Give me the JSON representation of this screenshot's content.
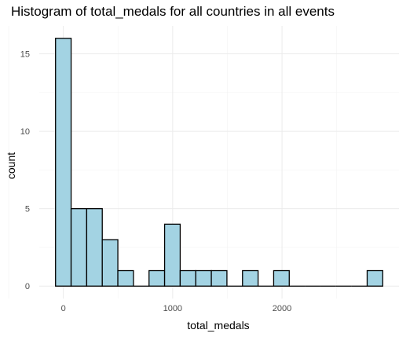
{
  "chart_data": {
    "type": "bar",
    "title": "Histogram of total_medals for all countries in all events",
    "xlabel": "total_medals",
    "ylabel": "count",
    "bin_width": 142.5,
    "bins": [
      {
        "x0": -71.25,
        "x1": 71.25,
        "count": 16
      },
      {
        "x0": 71.25,
        "x1": 213.75,
        "count": 5
      },
      {
        "x0": 213.75,
        "x1": 356.25,
        "count": 5
      },
      {
        "x0": 356.25,
        "x1": 498.75,
        "count": 3
      },
      {
        "x0": 498.75,
        "x1": 641.25,
        "count": 1
      },
      {
        "x0": 641.25,
        "x1": 783.75,
        "count": 0
      },
      {
        "x0": 783.75,
        "x1": 926.25,
        "count": 1
      },
      {
        "x0": 926.25,
        "x1": 1068.75,
        "count": 4
      },
      {
        "x0": 1068.75,
        "x1": 1211.25,
        "count": 1
      },
      {
        "x0": 1211.25,
        "x1": 1353.75,
        "count": 1
      },
      {
        "x0": 1353.75,
        "x1": 1496.25,
        "count": 1
      },
      {
        "x0": 1496.25,
        "x1": 1638.75,
        "count": 0
      },
      {
        "x0": 1638.75,
        "x1": 1781.25,
        "count": 1
      },
      {
        "x0": 1781.25,
        "x1": 1923.75,
        "count": 0
      },
      {
        "x0": 1923.75,
        "x1": 2066.25,
        "count": 1
      },
      {
        "x0": 2066.25,
        "x1": 2208.75,
        "count": 0
      },
      {
        "x0": 2208.75,
        "x1": 2351.25,
        "count": 0
      },
      {
        "x0": 2351.25,
        "x1": 2493.75,
        "count": 0
      },
      {
        "x0": 2493.75,
        "x1": 2636.25,
        "count": 0
      },
      {
        "x0": 2636.25,
        "x1": 2778.75,
        "count": 0
      },
      {
        "x0": 2778.75,
        "x1": 2921.25,
        "count": 1
      }
    ],
    "xlim": [
      -220,
      3070
    ],
    "ylim": [
      -0.8,
      16.8
    ],
    "x_ticks": [
      0,
      1000,
      2000
    ],
    "x_minor_ticks": [
      -500,
      500,
      1500,
      2500
    ],
    "y_ticks": [
      0,
      5,
      10,
      15
    ],
    "y_minor_ticks": [
      2.5,
      7.5,
      12.5
    ],
    "grid": true,
    "colors": {
      "fill": "#a3d3e3",
      "outline": "#000000"
    }
  }
}
